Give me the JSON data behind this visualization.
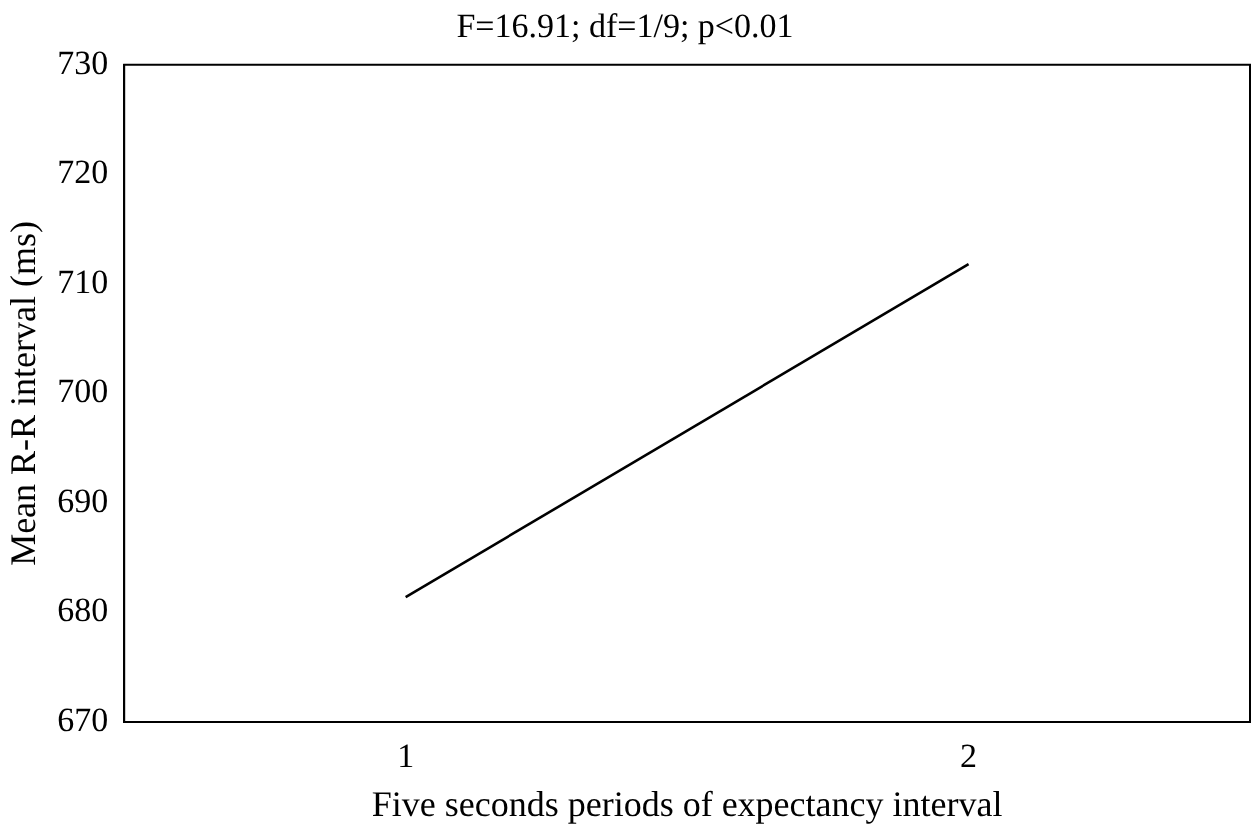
{
  "chart_data": {
    "type": "line",
    "title": "F=16.91; df=1/9; p<0.01",
    "xlabel": "Five seconds periods of expectancy interval",
    "ylabel": "Mean R-R interval (ms)",
    "categories": [
      "1",
      "2"
    ],
    "series": [
      {
        "color": "#000000",
        "values": [
          681.4,
          711.8
        ]
      }
    ],
    "ylim": [
      670,
      730
    ],
    "yticks": [
      670,
      680,
      690,
      700,
      710,
      720,
      730
    ],
    "grid": false,
    "legend": false,
    "marker": "none",
    "line_style": "solid"
  }
}
